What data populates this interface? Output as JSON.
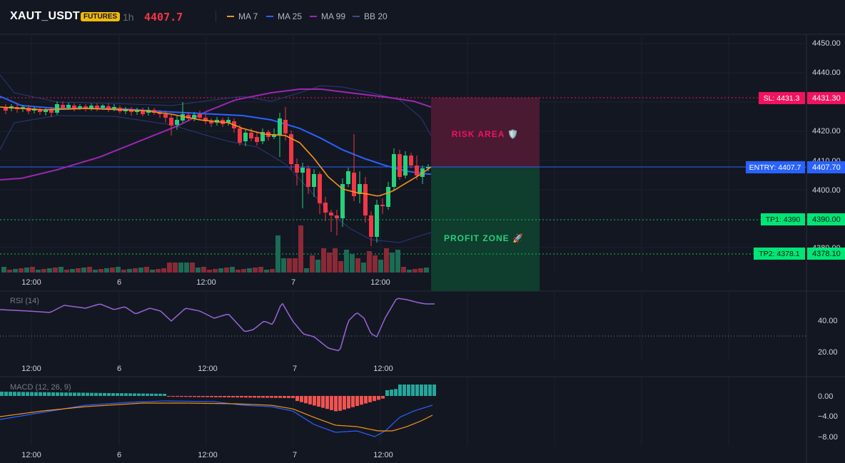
{
  "header": {
    "symbol": "XAUT_USDT",
    "badge": "FUTURES",
    "timeframe": "1h",
    "price": "4407.7",
    "legend": [
      {
        "label": "MA 7",
        "color": "#f7931a"
      },
      {
        "label": "MA 25",
        "color": "#2962ff"
      },
      {
        "label": "MA 99",
        "color": "#9c27b0"
      },
      {
        "label": "BB 20",
        "color": "#3a4a8a"
      }
    ]
  },
  "price_axis": [
    "4450.00",
    "4440.00",
    "4431.30",
    "4420.00",
    "4410.00",
    "4407.70",
    "4400.00",
    "4390.00",
    "4380.00",
    "4378.10"
  ],
  "levels": {
    "sl_label": "SL: 4431.3",
    "sl_axis": "4431.30",
    "entry_label": "ENTRY: 4407.7",
    "entry_axis": "4407.70",
    "tp1_label": "TP1: 4390",
    "tp1_axis": "4390.00",
    "tp2_label": "TP2: 4378.1",
    "tp2_axis": "4378.10"
  },
  "zones": {
    "risk": "RISK AREA 🛡️",
    "profit": "PROFIT ZONE 🚀"
  },
  "time_axis": [
    "12:00",
    "6",
    "12:00",
    "7",
    "12:00"
  ],
  "rsi": {
    "label": "RSI (14)",
    "axis": [
      "40.00",
      "20.00"
    ]
  },
  "macd": {
    "label": "MACD (12, 26, 9)",
    "axis": [
      "0.00",
      "−4.00",
      "−8.00"
    ]
  },
  "colors": {
    "bg": "#131722",
    "up": "#26d07c",
    "down": "#f23645",
    "sl": "#f0135e",
    "entry": "#2962ff",
    "tp": "#00c853",
    "rsi": "#9a63d6",
    "macd_line": "#2962ff",
    "signal_line": "#f7931a"
  }
}
